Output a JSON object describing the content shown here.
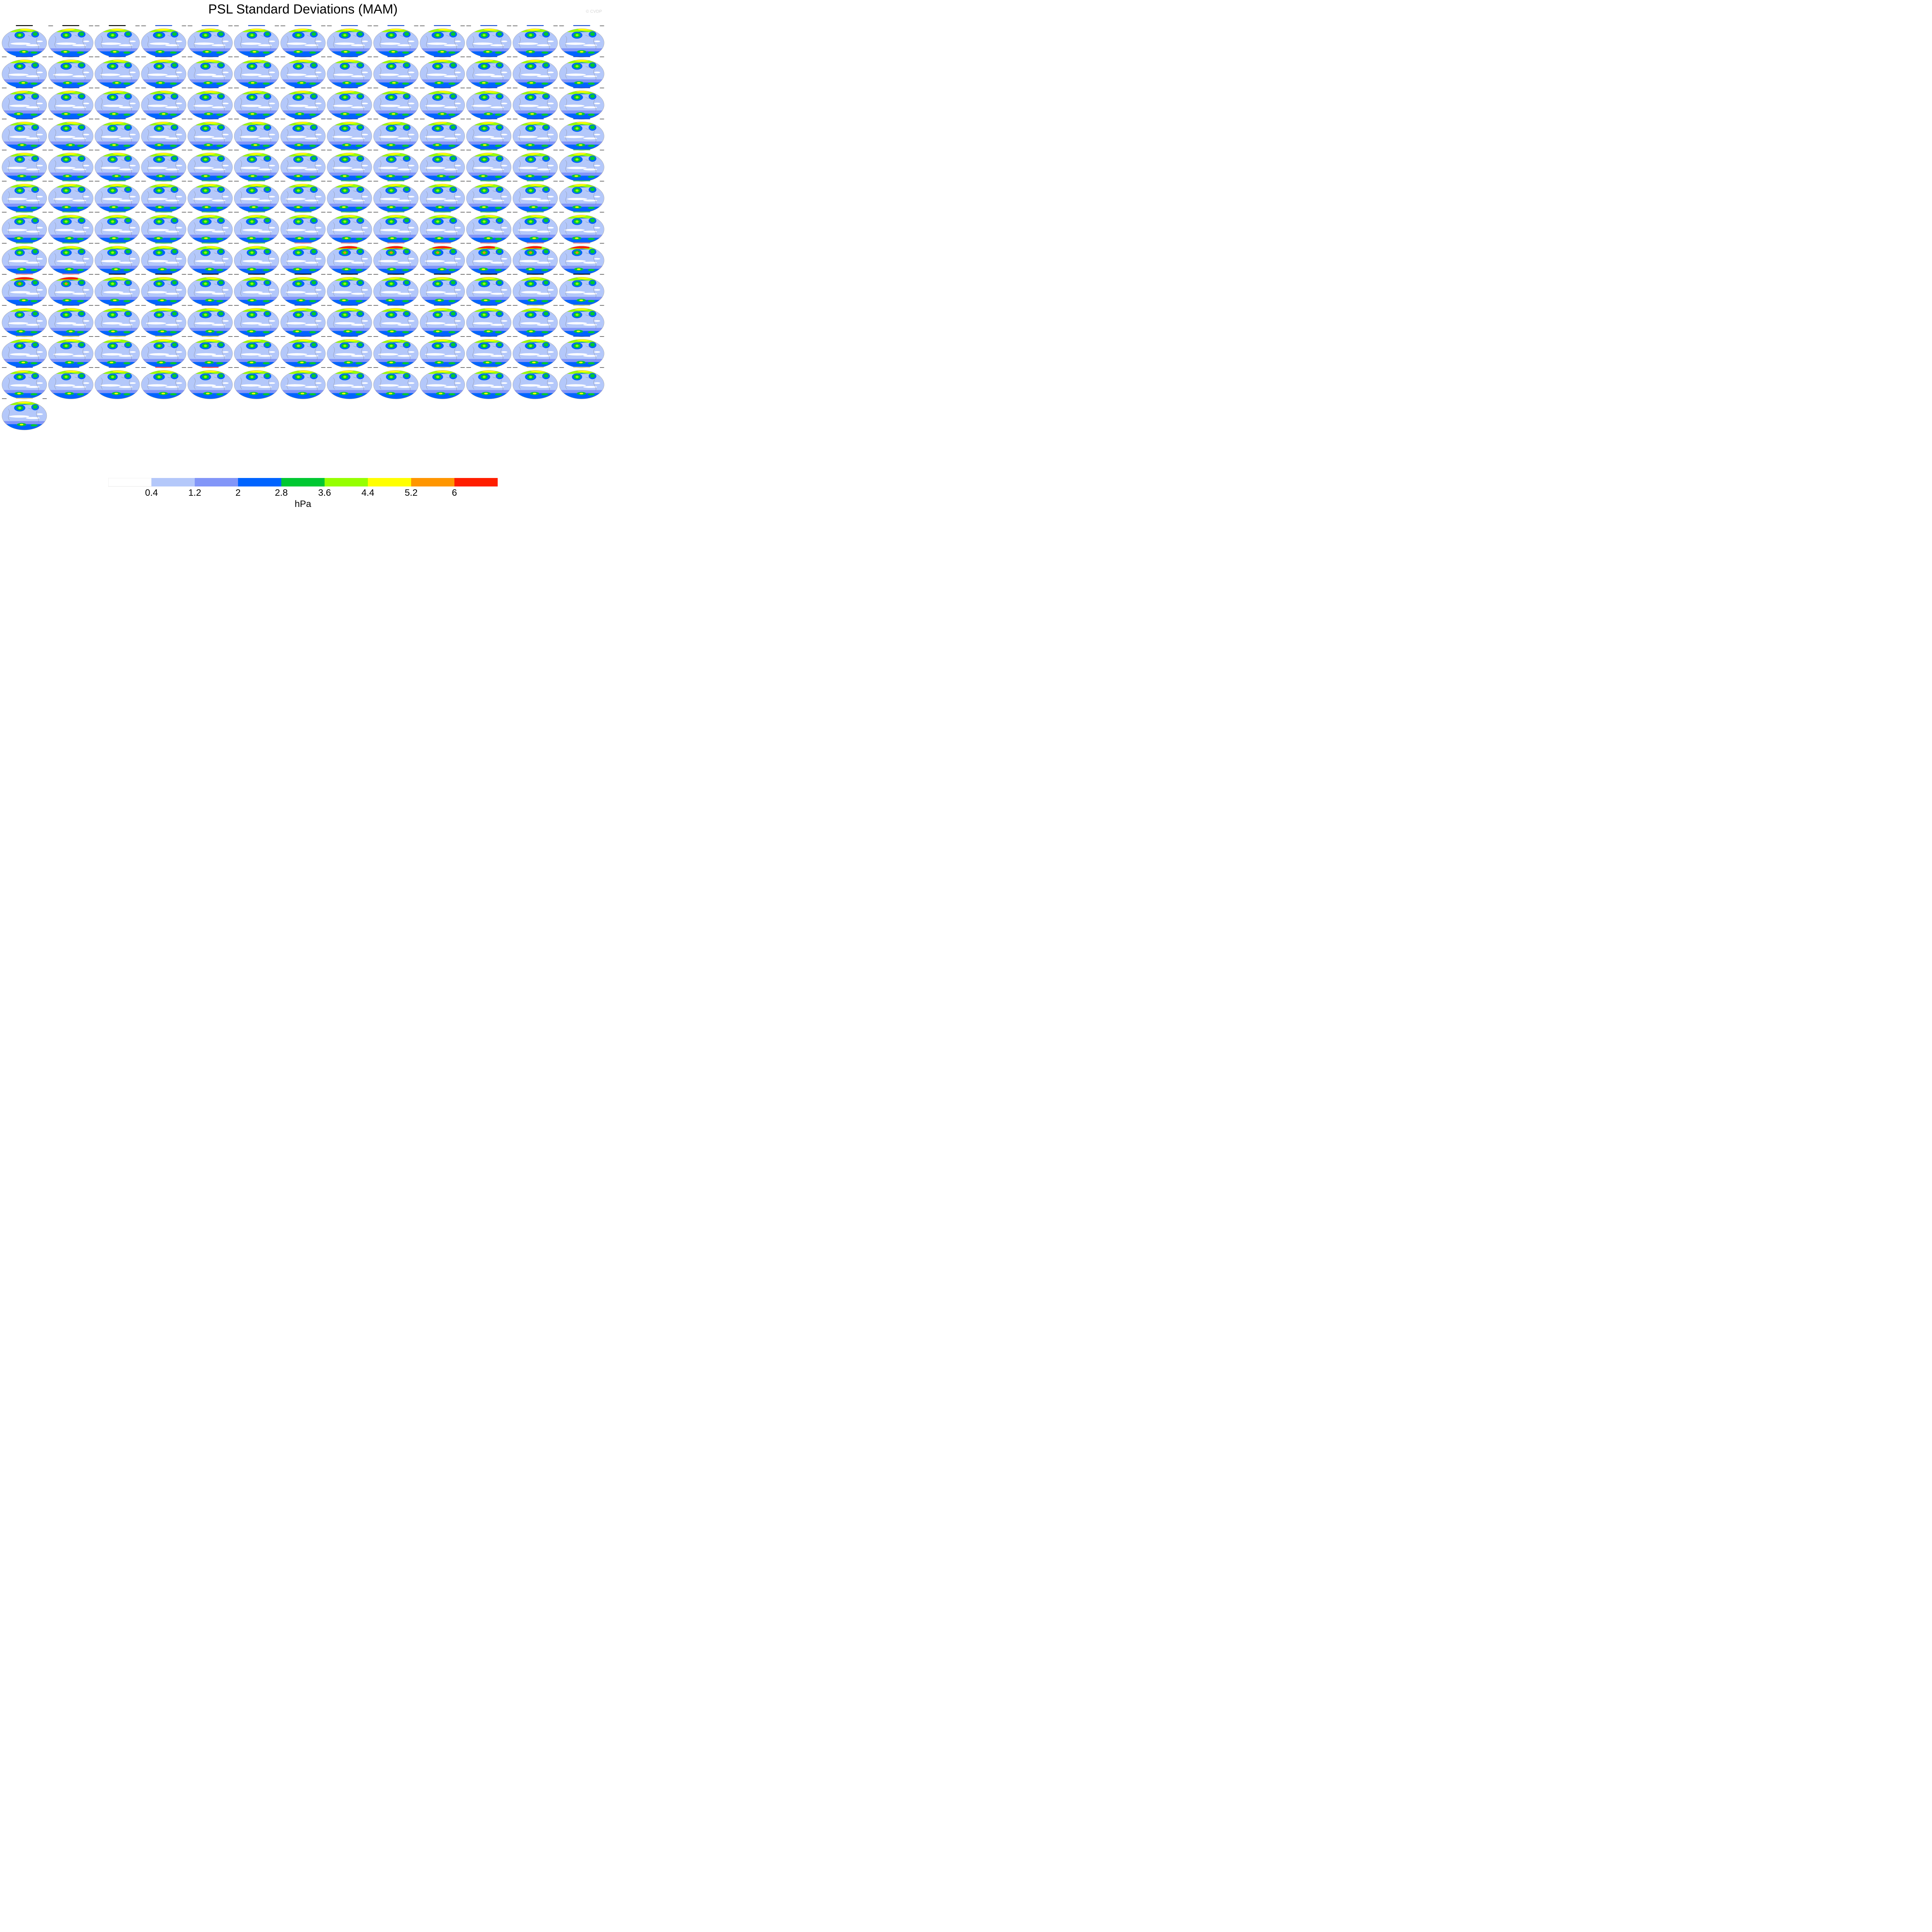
{
  "title": "PSL Standard Deviations (MAM)",
  "copyright": "© CVDP",
  "colorbar": {
    "units": "hPa",
    "tick_labels": [
      "0.4",
      "1.2",
      "2",
      "2.8",
      "3.6",
      "4.4",
      "5.2",
      "6"
    ],
    "colors": [
      "#ffffff",
      "#b4c8fa",
      "#8296f8",
      "#0064ff",
      "#00c832",
      "#96ff00",
      "#ffff00",
      "#ff9600",
      "#ff1e00"
    ]
  },
  "panel_grid": {
    "rows": 13,
    "columns": 13,
    "total_panels": 157,
    "caption_colors": {
      "observation": "#000000",
      "access": "#1e50d2",
      "canesm": "#50c850",
      "cesm": "#ff8888",
      "giss": "#000000",
      "ipsl": "#1e50d2",
      "miroc": "#c8c864",
      "mpi_hr": "#1e50d2",
      "mpi_lr": "#ff4444",
      "other": "#f0d888"
    }
  }
}
